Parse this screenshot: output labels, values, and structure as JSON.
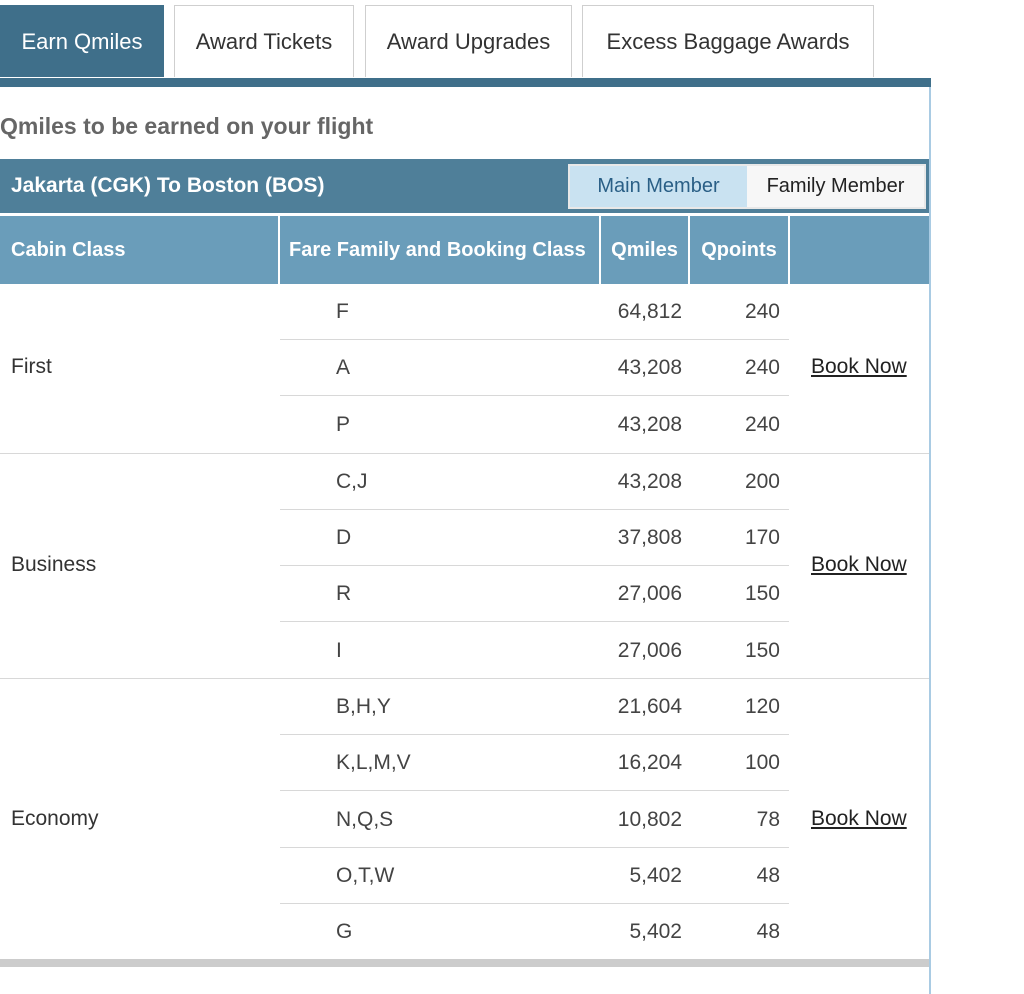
{
  "tabs": [
    {
      "label": "Earn Qmiles",
      "active": true
    },
    {
      "label": "Award Tickets",
      "active": false
    },
    {
      "label": "Award Upgrades",
      "active": false
    },
    {
      "label": "Excess Baggage Awards",
      "active": false
    }
  ],
  "heading": "Qmiles to be earned on your flight",
  "route": "Jakarta (CGK) To Boston (BOS)",
  "member_toggle": {
    "main": "Main Member",
    "family": "Family Member",
    "selected": "Main Member"
  },
  "columns": {
    "cabin": "Cabin Class",
    "fare": "Fare Family and Booking Class",
    "qmiles": "Qmiles",
    "qpoints": "Qpoints"
  },
  "sections": [
    {
      "cabin": "First",
      "book_label": "Book Now",
      "rows": [
        {
          "fare": "F",
          "qmiles": "64,812",
          "qpoints": "240"
        },
        {
          "fare": "A",
          "qmiles": "43,208",
          "qpoints": "240"
        },
        {
          "fare": "P",
          "qmiles": "43,208",
          "qpoints": "240"
        }
      ]
    },
    {
      "cabin": "Business",
      "book_label": "Book Now",
      "rows": [
        {
          "fare": "C,J",
          "qmiles": "43,208",
          "qpoints": "200"
        },
        {
          "fare": "D",
          "qmiles": "37,808",
          "qpoints": "170"
        },
        {
          "fare": "R",
          "qmiles": "27,006",
          "qpoints": "150"
        },
        {
          "fare": "I",
          "qmiles": "27,006",
          "qpoints": "150"
        }
      ]
    },
    {
      "cabin": "Economy",
      "book_label": "Book Now",
      "rows": [
        {
          "fare": "B,H,Y",
          "qmiles": "21,604",
          "qpoints": "120"
        },
        {
          "fare": "K,L,M,V",
          "qmiles": "16,204",
          "qpoints": "100"
        },
        {
          "fare": "N,Q,S",
          "qmiles": "10,802",
          "qpoints": "78"
        },
        {
          "fare": "O,T,W",
          "qmiles": "5,402",
          "qpoints": "48"
        },
        {
          "fare": "G",
          "qmiles": "5,402",
          "qpoints": "48"
        }
      ]
    }
  ],
  "colors": {
    "primary": "#3f6f8a",
    "header": "#6a9dba",
    "route_bar": "#4f7f99",
    "toggle_active": "#c9e2f1"
  }
}
